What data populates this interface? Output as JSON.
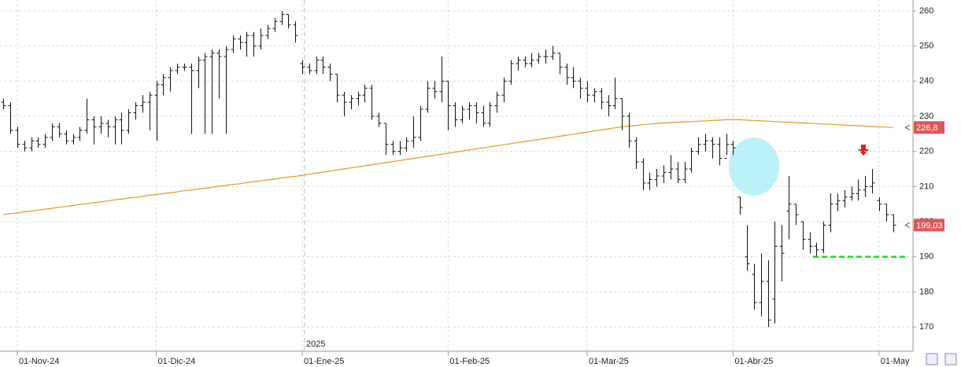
{
  "chart_data": {
    "type": "ohlc",
    "categories": [
      null,
      null,
      "01-Nov-24",
      null,
      null,
      null,
      null,
      null,
      null,
      null,
      null,
      null,
      null,
      null,
      null,
      null,
      null,
      null,
      null,
      null,
      null,
      null,
      "01-Dic-24",
      null,
      null,
      null,
      null,
      null,
      null,
      null,
      null,
      null,
      null,
      null,
      null,
      null,
      null,
      null,
      null,
      null,
      null,
      null,
      null,
      "01-Ene-25",
      null,
      null,
      null,
      null,
      null,
      null,
      null,
      null,
      null,
      null,
      null,
      null,
      null,
      null,
      null,
      null,
      null,
      null,
      null,
      null,
      "01-Feb-25",
      null,
      null,
      null,
      null,
      null,
      null,
      null,
      null,
      null,
      null,
      null,
      null,
      null,
      null,
      null,
      null,
      null,
      null,
      null,
      "01-Mar-25",
      null,
      null,
      null,
      null,
      null,
      null,
      null,
      null,
      null,
      null,
      null,
      null,
      null,
      null,
      null,
      null,
      null,
      null,
      null,
      null,
      "01-Abr-25",
      null,
      null,
      null,
      null,
      null,
      null,
      null,
      null,
      null,
      null,
      null,
      null,
      null,
      null,
      null,
      null,
      null,
      null,
      null,
      null,
      "01-May",
      null,
      null
    ],
    "open": [
      234,
      233,
      226,
      222,
      221,
      223,
      222,
      224,
      227,
      225,
      223,
      224,
      226,
      229,
      227,
      228,
      227,
      229,
      226,
      231,
      233,
      234,
      236,
      239,
      241,
      243,
      244,
      244,
      243,
      246,
      247,
      248,
      247,
      249,
      252,
      251,
      253,
      250,
      253,
      255,
      257,
      259,
      256,
      245,
      244,
      243,
      246,
      244,
      242,
      236,
      234,
      235,
      236,
      238,
      230,
      228,
      222,
      220,
      221,
      223,
      224,
      232,
      238,
      237,
      240,
      233,
      229,
      232,
      233,
      231,
      228,
      233,
      236,
      240,
      245,
      246,
      245,
      246,
      247,
      247,
      248,
      244,
      241,
      240,
      238,
      236,
      237,
      234,
      233,
      235,
      230,
      223,
      217,
      211,
      212,
      213,
      214,
      215,
      212,
      215,
      220,
      222,
      223,
      222,
      218,
      222,
      207,
      190,
      185,
      177,
      183,
      178,
      193,
      203,
      205,
      200,
      195,
      193,
      192,
      199,
      205,
      206,
      207,
      208,
      209,
      210,
      206,
      205,
      202
    ],
    "high": [
      235,
      234,
      227,
      223,
      224,
      224,
      225,
      228,
      228,
      226,
      225,
      227,
      235,
      230,
      230,
      229,
      230,
      231,
      232,
      234,
      236,
      237,
      240,
      242,
      244,
      245,
      245,
      245,
      247,
      248,
      249,
      249,
      250,
      253,
      253,
      254,
      254,
      255,
      256,
      258,
      260,
      259,
      257,
      246,
      245,
      247,
      247,
      245,
      242,
      237,
      236,
      237,
      239,
      239,
      231,
      228,
      223,
      223,
      224,
      230,
      233,
      240,
      240,
      247,
      240,
      234,
      233,
      234,
      234,
      233,
      234,
      237,
      241,
      246,
      247,
      247,
      248,
      248,
      249,
      250,
      248,
      245,
      244,
      241,
      240,
      238,
      238,
      236,
      241,
      235,
      231,
      224,
      218,
      214,
      215,
      216,
      219,
      217,
      217,
      221,
      224,
      225,
      224,
      224,
      225,
      223,
      207,
      199,
      188,
      191,
      189,
      200,
      199,
      213,
      205,
      200,
      197,
      194,
      200,
      208,
      208,
      209,
      210,
      212,
      213,
      215,
      207,
      205,
      202
    ],
    "low": [
      232,
      225,
      221,
      220,
      220,
      221,
      221,
      223,
      224,
      222,
      222,
      223,
      225,
      222,
      225,
      224,
      222,
      222,
      225,
      229,
      231,
      226,
      223,
      236,
      237,
      242,
      243,
      225,
      238,
      225,
      225,
      235,
      225,
      248,
      249,
      247,
      247,
      249,
      252,
      254,
      256,
      255,
      251,
      242,
      242,
      242,
      242,
      240,
      234,
      230,
      232,
      233,
      234,
      229,
      227,
      219,
      219,
      219,
      220,
      221,
      223,
      231,
      235,
      234,
      226,
      227,
      228,
      229,
      228,
      227,
      227,
      231,
      234,
      239,
      243,
      244,
      244,
      245,
      245,
      246,
      242,
      239,
      238,
      235,
      234,
      234,
      232,
      230,
      232,
      226,
      221,
      215,
      209,
      209,
      210,
      211,
      212,
      211,
      211,
      214,
      219,
      220,
      218,
      216,
      219,
      219,
      202,
      186,
      175,
      173,
      170,
      171,
      183,
      195,
      199,
      192,
      191,
      190,
      191,
      197,
      203,
      204,
      206,
      206,
      207,
      208,
      203,
      200,
      197
    ],
    "close": [
      233,
      226,
      222,
      221,
      223,
      222,
      224,
      227,
      225,
      223,
      224,
      226,
      229,
      227,
      228,
      227,
      229,
      226,
      231,
      233,
      234,
      236,
      239,
      241,
      243,
      244,
      244,
      243,
      246,
      247,
      248,
      247,
      249,
      252,
      251,
      253,
      250,
      253,
      255,
      257,
      259,
      256,
      253,
      244,
      243,
      246,
      244,
      242,
      236,
      234,
      235,
      236,
      238,
      230,
      228,
      222,
      220,
      221,
      223,
      224,
      232,
      238,
      237,
      240,
      233,
      229,
      232,
      233,
      231,
      228,
      233,
      236,
      240,
      245,
      246,
      245,
      246,
      247,
      247,
      248,
      244,
      241,
      240,
      238,
      236,
      237,
      234,
      233,
      235,
      230,
      223,
      217,
      211,
      212,
      213,
      214,
      215,
      212,
      215,
      220,
      222,
      223,
      222,
      218,
      222,
      221,
      204,
      188,
      177,
      183,
      172,
      193,
      191,
      205,
      202,
      195,
      193,
      192,
      199,
      205,
      206,
      207,
      208,
      209,
      210,
      211,
      205,
      202,
      199
    ],
    "color": "#111111",
    "moving_average": {
      "color": "#e8961e",
      "values": [
        202.0,
        202.3,
        202.5,
        202.8,
        203.0,
        203.3,
        203.6,
        203.8,
        204.1,
        204.3,
        204.6,
        204.9,
        205.1,
        205.4,
        205.6,
        205.9,
        206.2,
        206.4,
        206.7,
        206.9,
        207.2,
        207.5,
        207.7,
        208.0,
        208.2,
        208.5,
        208.8,
        209.0,
        209.3,
        209.5,
        209.8,
        210.1,
        210.3,
        210.6,
        210.8,
        211.1,
        211.4,
        211.6,
        211.9,
        212.1,
        212.4,
        212.7,
        212.9,
        213.2,
        213.5,
        213.8,
        214.1,
        214.4,
        214.7,
        215.0,
        215.3,
        215.6,
        215.9,
        216.2,
        216.5,
        216.8,
        217.1,
        217.4,
        217.7,
        218.0,
        218.3,
        218.6,
        218.9,
        219.2,
        219.5,
        219.8,
        220.1,
        220.4,
        220.7,
        221.0,
        221.3,
        221.6,
        221.9,
        222.2,
        222.5,
        222.8,
        223.1,
        223.4,
        223.7,
        224.0,
        224.3,
        224.6,
        224.9,
        225.2,
        225.5,
        225.8,
        226.1,
        226.4,
        226.7,
        227.0,
        227.2,
        227.4,
        227.6,
        227.8,
        228.0,
        228.1,
        228.2,
        228.3,
        228.4,
        228.5,
        228.6,
        228.7,
        228.8,
        228.9,
        229.0,
        229.0,
        229.0,
        228.9,
        228.8,
        228.7,
        228.6,
        228.5,
        228.4,
        228.3,
        228.2,
        228.1,
        228.0,
        227.9,
        227.8,
        227.7,
        227.6,
        227.5,
        227.4,
        227.3,
        227.2,
        227.1,
        227.0,
        226.9,
        226.8
      ]
    },
    "price_labels": [
      {
        "value": 226.8,
        "label": "226,8"
      },
      {
        "value": 199.03,
        "label": "199,03"
      }
    ],
    "price_label_color": "#e05555",
    "support_line": {
      "value": 190,
      "color": "#22dd22"
    },
    "year_label": "2025",
    "ylim": [
      163.1,
      263.1
    ],
    "yticks": [
      170,
      180,
      190,
      200,
      210,
      220,
      230,
      240,
      250,
      260
    ],
    "grid": true
  }
}
